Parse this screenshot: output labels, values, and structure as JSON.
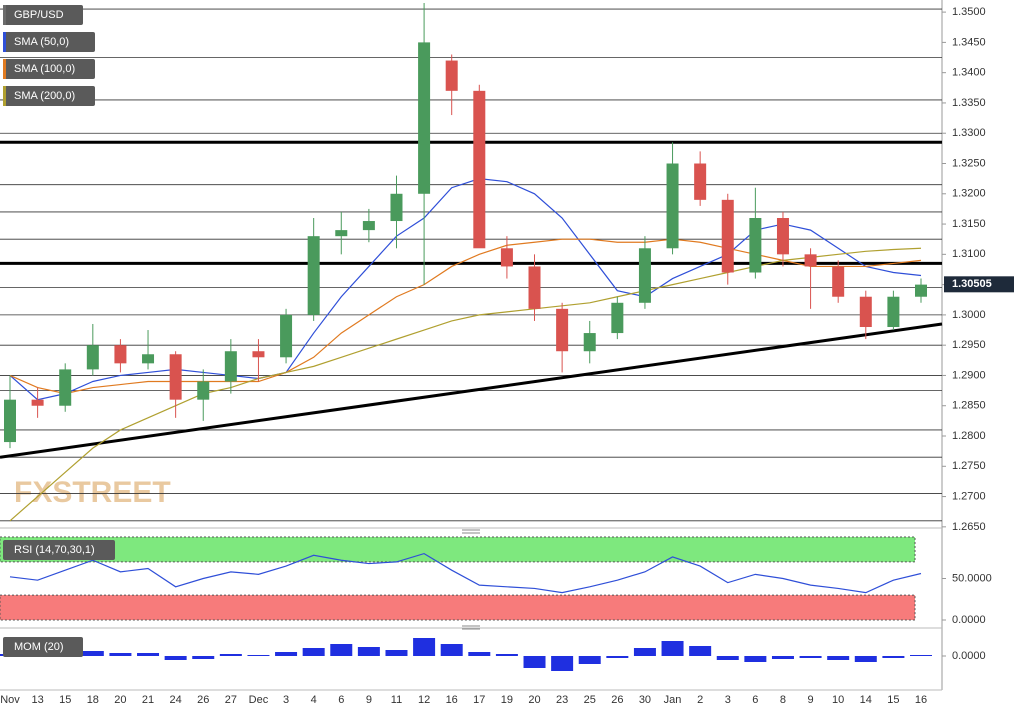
{
  "chart_data": [
    {
      "type": "candlestick",
      "watermark": "FXSTREET",
      "last_price": 1.30505,
      "up_color": "#4a9a5c",
      "down_color": "#d9534f",
      "categories": [
        "Nov",
        "13",
        "15",
        "18",
        "20",
        "21",
        "24",
        "26",
        "27",
        "Dec",
        "3",
        "4",
        "6",
        "9",
        "11",
        "12",
        "16",
        "17",
        "19",
        "20",
        "23",
        "25",
        "26",
        "30",
        "Jan",
        "2",
        "3",
        "6",
        "8",
        "9",
        "10",
        "14",
        "15",
        "16"
      ],
      "ohlc": {
        "name": "GBP/USD",
        "color": "#6b6b6b",
        "open": [
          1.279,
          1.286,
          1.285,
          1.291,
          1.295,
          1.292,
          1.2935,
          1.286,
          1.289,
          1.294,
          1.293,
          1.3,
          1.313,
          1.314,
          1.3155,
          1.32,
          1.342,
          1.337,
          1.311,
          1.308,
          1.301,
          1.294,
          1.297,
          1.302,
          1.311,
          1.325,
          1.319,
          1.307,
          1.316,
          1.31,
          1.308,
          1.303,
          1.298,
          1.303
        ],
        "high": [
          1.29,
          1.288,
          1.292,
          1.2985,
          1.296,
          1.2975,
          1.294,
          1.291,
          1.296,
          1.296,
          1.301,
          1.316,
          1.317,
          1.3175,
          1.323,
          1.3515,
          1.343,
          1.338,
          1.313,
          1.31,
          1.302,
          1.299,
          1.303,
          1.313,
          1.3285,
          1.327,
          1.32,
          1.321,
          1.317,
          1.311,
          1.309,
          1.304,
          1.304,
          1.306
        ],
        "low": [
          1.278,
          1.283,
          1.284,
          1.29,
          1.2905,
          1.291,
          1.283,
          1.2825,
          1.287,
          1.289,
          1.292,
          1.299,
          1.31,
          1.312,
          1.311,
          1.305,
          1.333,
          1.32,
          1.306,
          1.299,
          1.2905,
          1.292,
          1.296,
          1.301,
          1.31,
          1.318,
          1.305,
          1.306,
          1.308,
          1.301,
          1.302,
          1.296,
          1.2975,
          1.302
        ],
        "close": [
          1.286,
          1.285,
          1.291,
          1.295,
          1.292,
          1.2935,
          1.286,
          1.289,
          1.294,
          1.293,
          1.3,
          1.313,
          1.314,
          1.3155,
          1.32,
          1.345,
          1.337,
          1.311,
          1.308,
          1.301,
          1.294,
          1.297,
          1.302,
          1.311,
          1.325,
          1.319,
          1.307,
          1.316,
          1.31,
          1.308,
          1.303,
          1.298,
          1.303,
          1.305
        ]
      },
      "series": [
        {
          "name": "SMA (50,0)",
          "color": "#2f4fd8",
          "values": [
            1.29,
            1.286,
            1.287,
            1.289,
            1.29,
            1.2905,
            1.291,
            1.2905,
            1.29,
            1.2895,
            1.2905,
            1.297,
            1.303,
            1.308,
            1.313,
            1.316,
            1.321,
            1.3225,
            1.322,
            1.32,
            1.316,
            1.31,
            1.304,
            1.303,
            1.306,
            1.308,
            1.31,
            1.314,
            1.315,
            1.314,
            1.311,
            1.308,
            1.307,
            1.3065
          ]
        },
        {
          "name": "SMA (100,0)",
          "color": "#e07a20",
          "values": [
            1.29,
            1.288,
            1.287,
            1.288,
            1.2885,
            1.289,
            1.289,
            1.289,
            1.289,
            1.289,
            1.2905,
            1.293,
            1.297,
            1.3,
            1.303,
            1.305,
            1.308,
            1.31,
            1.3115,
            1.312,
            1.3125,
            1.3125,
            1.312,
            1.312,
            1.3125,
            1.312,
            1.311,
            1.31,
            1.309,
            1.308,
            1.308,
            1.308,
            1.3085,
            1.309
          ]
        },
        {
          "name": "SMA (200,0)",
          "color": "#b0a030",
          "values": [
            1.266,
            1.27,
            1.274,
            1.278,
            1.281,
            1.283,
            1.285,
            1.287,
            1.288,
            1.2895,
            1.2905,
            1.2915,
            1.293,
            1.2945,
            1.296,
            1.2975,
            1.299,
            1.3,
            1.3005,
            1.301,
            1.3015,
            1.302,
            1.303,
            1.304,
            1.305,
            1.306,
            1.307,
            1.308,
            1.309,
            1.3095,
            1.31,
            1.3105,
            1.3108,
            1.311
          ]
        }
      ],
      "levels": [
        1.3505,
        1.3425,
        1.3355,
        1.33,
        1.3215,
        1.317,
        1.3125,
        1.3045,
        1.3,
        1.295,
        1.29,
        1.2875,
        1.281,
        1.2765,
        1.2705,
        1.266
      ],
      "key_levels": [
        1.3285,
        1.3085
      ],
      "trendline": [
        1.2765,
        1.2985
      ],
      "ylim": [
        1.2658,
        1.352
      ],
      "yticks": [
        {
          "value": 1.35,
          "label": "1.3500"
        },
        {
          "value": 1.345,
          "label": "1.3450"
        },
        {
          "value": 1.34,
          "label": "1.3400"
        },
        {
          "value": 1.335,
          "label": "1.3350"
        },
        {
          "value": 1.33,
          "label": "1.3300"
        },
        {
          "value": 1.325,
          "label": "1.3250"
        },
        {
          "value": 1.32,
          "label": "1.3200"
        },
        {
          "value": 1.315,
          "label": "1.3150"
        },
        {
          "value": 1.31,
          "label": "1.3100"
        },
        {
          "value": 1.305,
          "label": "1.3050"
        },
        {
          "value": 1.3,
          "label": "1.3000"
        },
        {
          "value": 1.295,
          "label": "1.2950"
        },
        {
          "value": 1.29,
          "label": "1.2900"
        },
        {
          "value": 1.285,
          "label": "1.2850"
        },
        {
          "value": 1.28,
          "label": "1.2800"
        },
        {
          "value": 1.275,
          "label": "1.2750"
        },
        {
          "value": 1.27,
          "label": "1.2700"
        },
        {
          "value": 1.265,
          "label": "1.2650"
        }
      ]
    },
    {
      "type": "line",
      "series": [
        {
          "name": "RSI (14,70,30,1)",
          "color": "#2f4fd8",
          "values": [
            52,
            48,
            60,
            72,
            58,
            62,
            40,
            50,
            58,
            55,
            65,
            78,
            72,
            68,
            70,
            80,
            60,
            42,
            40,
            38,
            33,
            40,
            48,
            58,
            76,
            65,
            45,
            55,
            50,
            42,
            38,
            33,
            48,
            56
          ]
        }
      ],
      "zones": [
        {
          "from": 70,
          "to": 100,
          "color": "#7ee87e"
        },
        {
          "from": 0,
          "to": 30,
          "color": "#f77b7b"
        }
      ],
      "ylim": [
        0,
        100
      ],
      "yticks": [
        {
          "value": 50,
          "label": "50.0000"
        },
        {
          "value": 0,
          "label": "0.0000"
        }
      ]
    },
    {
      "type": "bar",
      "series": [
        {
          "name": "MOM (20)",
          "color": "#1f2fe0",
          "values": [
            0.002,
            0.003,
            0.004,
            0.005,
            0.003,
            0.003,
            -0.004,
            -0.003,
            0.002,
            0.001,
            0.004,
            0.008,
            0.012,
            0.009,
            0.006,
            0.018,
            0.012,
            0.004,
            0.002,
            -0.012,
            -0.015,
            -0.008,
            -0.002,
            0.008,
            0.015,
            0.01,
            -0.004,
            -0.006,
            -0.003,
            -0.002,
            -0.004,
            -0.006,
            -0.002,
            0.001
          ]
        }
      ],
      "ylim": [
        -0.029,
        0.023
      ],
      "yticks": [
        {
          "value": 0,
          "label": "0.0000"
        }
      ]
    }
  ]
}
